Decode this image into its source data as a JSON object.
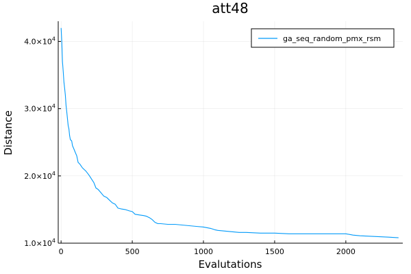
{
  "chart_data": {
    "type": "line",
    "title": "att48",
    "xlabel": "Evalutations",
    "ylabel": "Distance",
    "xlim": [
      -20,
      2400
    ],
    "ylim": [
      10000,
      43000
    ],
    "xticks": [
      0,
      500,
      1000,
      1500,
      2000
    ],
    "xtick_labels": [
      "0",
      "500",
      "1000",
      "1500",
      "2000"
    ],
    "yticks": [
      10000,
      20000,
      30000,
      40000
    ],
    "ytick_labels": [
      {
        "mantissa": "1.0×10",
        "exp": "4"
      },
      {
        "mantissa": "2.0×10",
        "exp": "4"
      },
      {
        "mantissa": "3.0×10",
        "exp": "4"
      },
      {
        "mantissa": "4.0×10",
        "exp": "4"
      }
    ],
    "grid": true,
    "legend_position": "top-right",
    "series": [
      {
        "name": "ga_seq_random_pmx_rsm",
        "color": "#009AFA",
        "x": [
          0,
          5,
          10,
          15,
          20,
          25,
          30,
          35,
          40,
          45,
          50,
          55,
          60,
          65,
          70,
          75,
          80,
          90,
          100,
          110,
          120,
          130,
          140,
          150,
          160,
          175,
          190,
          200,
          215,
          230,
          245,
          260,
          280,
          300,
          320,
          340,
          360,
          380,
          400,
          420,
          450,
          480,
          500,
          520,
          550,
          580,
          600,
          620,
          640,
          660,
          680,
          700,
          750,
          800,
          850,
          900,
          950,
          1000,
          1050,
          1080,
          1100,
          1150,
          1200,
          1250,
          1300,
          1400,
          1500,
          1600,
          1700,
          1800,
          1900,
          2000,
          2050,
          2100,
          2200,
          2300,
          2370
        ],
        "y": [
          42000,
          40000,
          37000,
          35500,
          34000,
          33000,
          32000,
          30500,
          29500,
          28500,
          27500,
          27000,
          26000,
          25400,
          25300,
          25200,
          24500,
          24000,
          23500,
          23000,
          22000,
          21800,
          21500,
          21200,
          21000,
          20700,
          20300,
          20000,
          19500,
          19000,
          18200,
          18000,
          17500,
          17000,
          16800,
          16400,
          16000,
          15800,
          15200,
          15100,
          15000,
          14800,
          14700,
          14300,
          14200,
          14100,
          14000,
          13800,
          13500,
          13100,
          12900,
          12900,
          12800,
          12800,
          12700,
          12600,
          12500,
          12400,
          12200,
          12000,
          11900,
          11800,
          11700,
          11600,
          11600,
          11500,
          11500,
          11400,
          11400,
          11400,
          11400,
          11400,
          11200,
          11100,
          11000,
          10900,
          10800
        ]
      }
    ]
  }
}
